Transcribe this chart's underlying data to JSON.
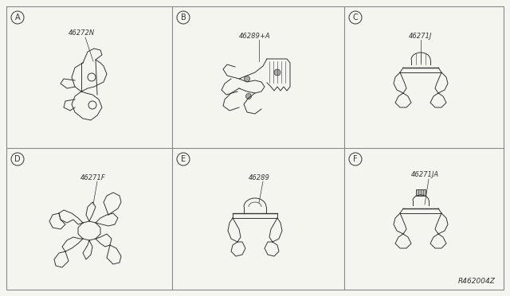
{
  "background_color": "#f5f5f0",
  "border_color": "#888888",
  "grid_line_color": "#888888",
  "fig_width": 6.4,
  "fig_height": 3.72,
  "dpi": 100,
  "cells": [
    {
      "label": "A",
      "part_number": "46272N",
      "col": 0,
      "row": 0
    },
    {
      "label": "B",
      "part_number": "46289+A",
      "col": 1,
      "row": 0
    },
    {
      "label": "C",
      "part_number": "46271J",
      "col": 2,
      "row": 0
    },
    {
      "label": "D",
      "part_number": "46271F",
      "col": 0,
      "row": 1
    },
    {
      "label": "E",
      "part_number": "46289",
      "col": 1,
      "row": 1
    },
    {
      "label": "F",
      "part_number": "46271JA",
      "col": 2,
      "row": 1
    }
  ],
  "diagram_label": "R462004Z",
  "label_fontsize": 7,
  "part_fontsize": 6,
  "diagram_label_fontsize": 6.5,
  "line_color": "#333333",
  "lw": 0.7
}
